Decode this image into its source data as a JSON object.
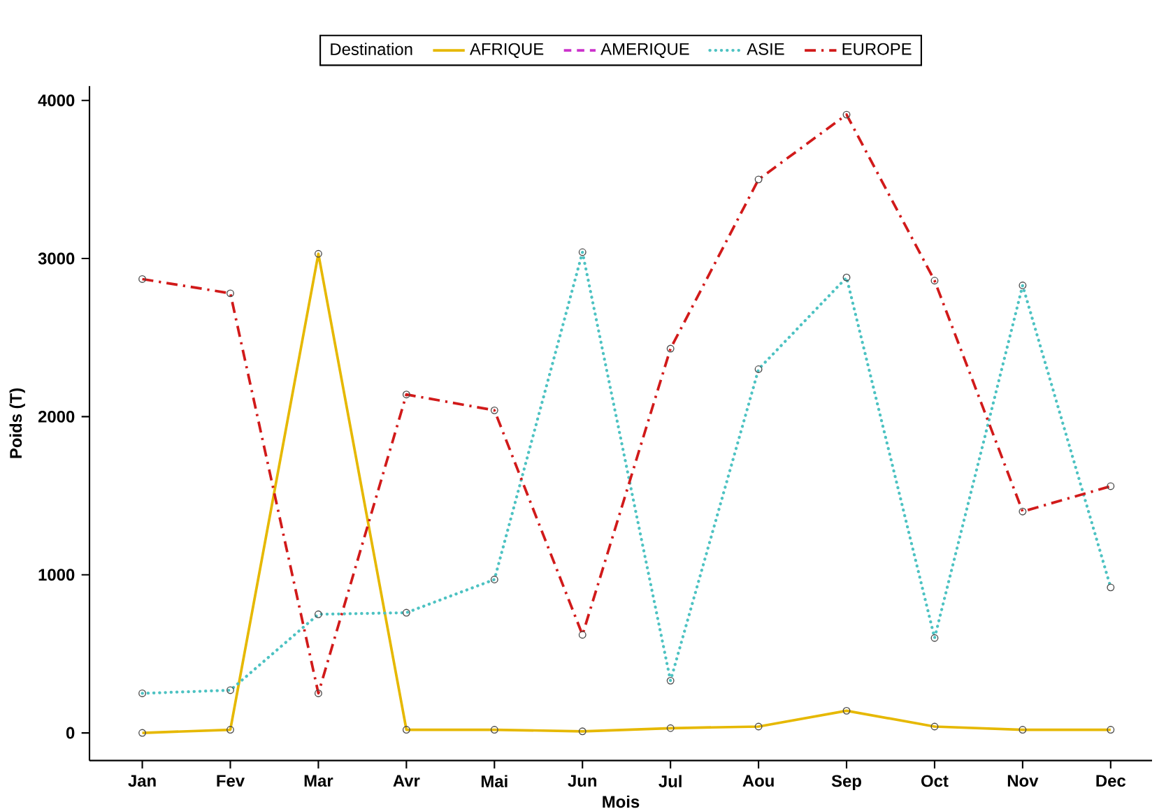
{
  "chart_data": {
    "type": "line",
    "xlabel": "Mois",
    "ylabel": "Poids (T)",
    "legend_title": "Destination",
    "legend": "top",
    "marker": "circle",
    "grid": false,
    "categories": [
      "Jan",
      "Fev",
      "Mar",
      "Avr",
      "Mai",
      "Jun",
      "Jul",
      "Aou",
      "Sep",
      "Oct",
      "Nov",
      "Dec"
    ],
    "ylim": [
      -175,
      4090
    ],
    "yticks": [
      0,
      1000,
      2000,
      3000,
      4000
    ],
    "series": [
      {
        "name": "AFRIQUE",
        "color": "#e6b800",
        "line_style": "solid",
        "values": [
          0,
          20,
          3030,
          20,
          20,
          10,
          30,
          40,
          140,
          40,
          20,
          20
        ]
      },
      {
        "name": "AMERIQUE",
        "color": "#cc33cc",
        "line_style": "dashed",
        "values": [
          null,
          null,
          null,
          null,
          null,
          null,
          null,
          null,
          null,
          null,
          null,
          null
        ]
      },
      {
        "name": "ASIE",
        "color": "#4dc2c2",
        "line_style": "dotted",
        "values": [
          250,
          270,
          750,
          760,
          970,
          3040,
          330,
          2300,
          2880,
          600,
          2830,
          920
        ]
      },
      {
        "name": "EUROPE",
        "color": "#d11a1a",
        "line_style": "dashdot",
        "values": [
          2870,
          2780,
          250,
          2140,
          2040,
          620,
          2430,
          3500,
          3910,
          2860,
          1400,
          1560
        ]
      }
    ]
  }
}
